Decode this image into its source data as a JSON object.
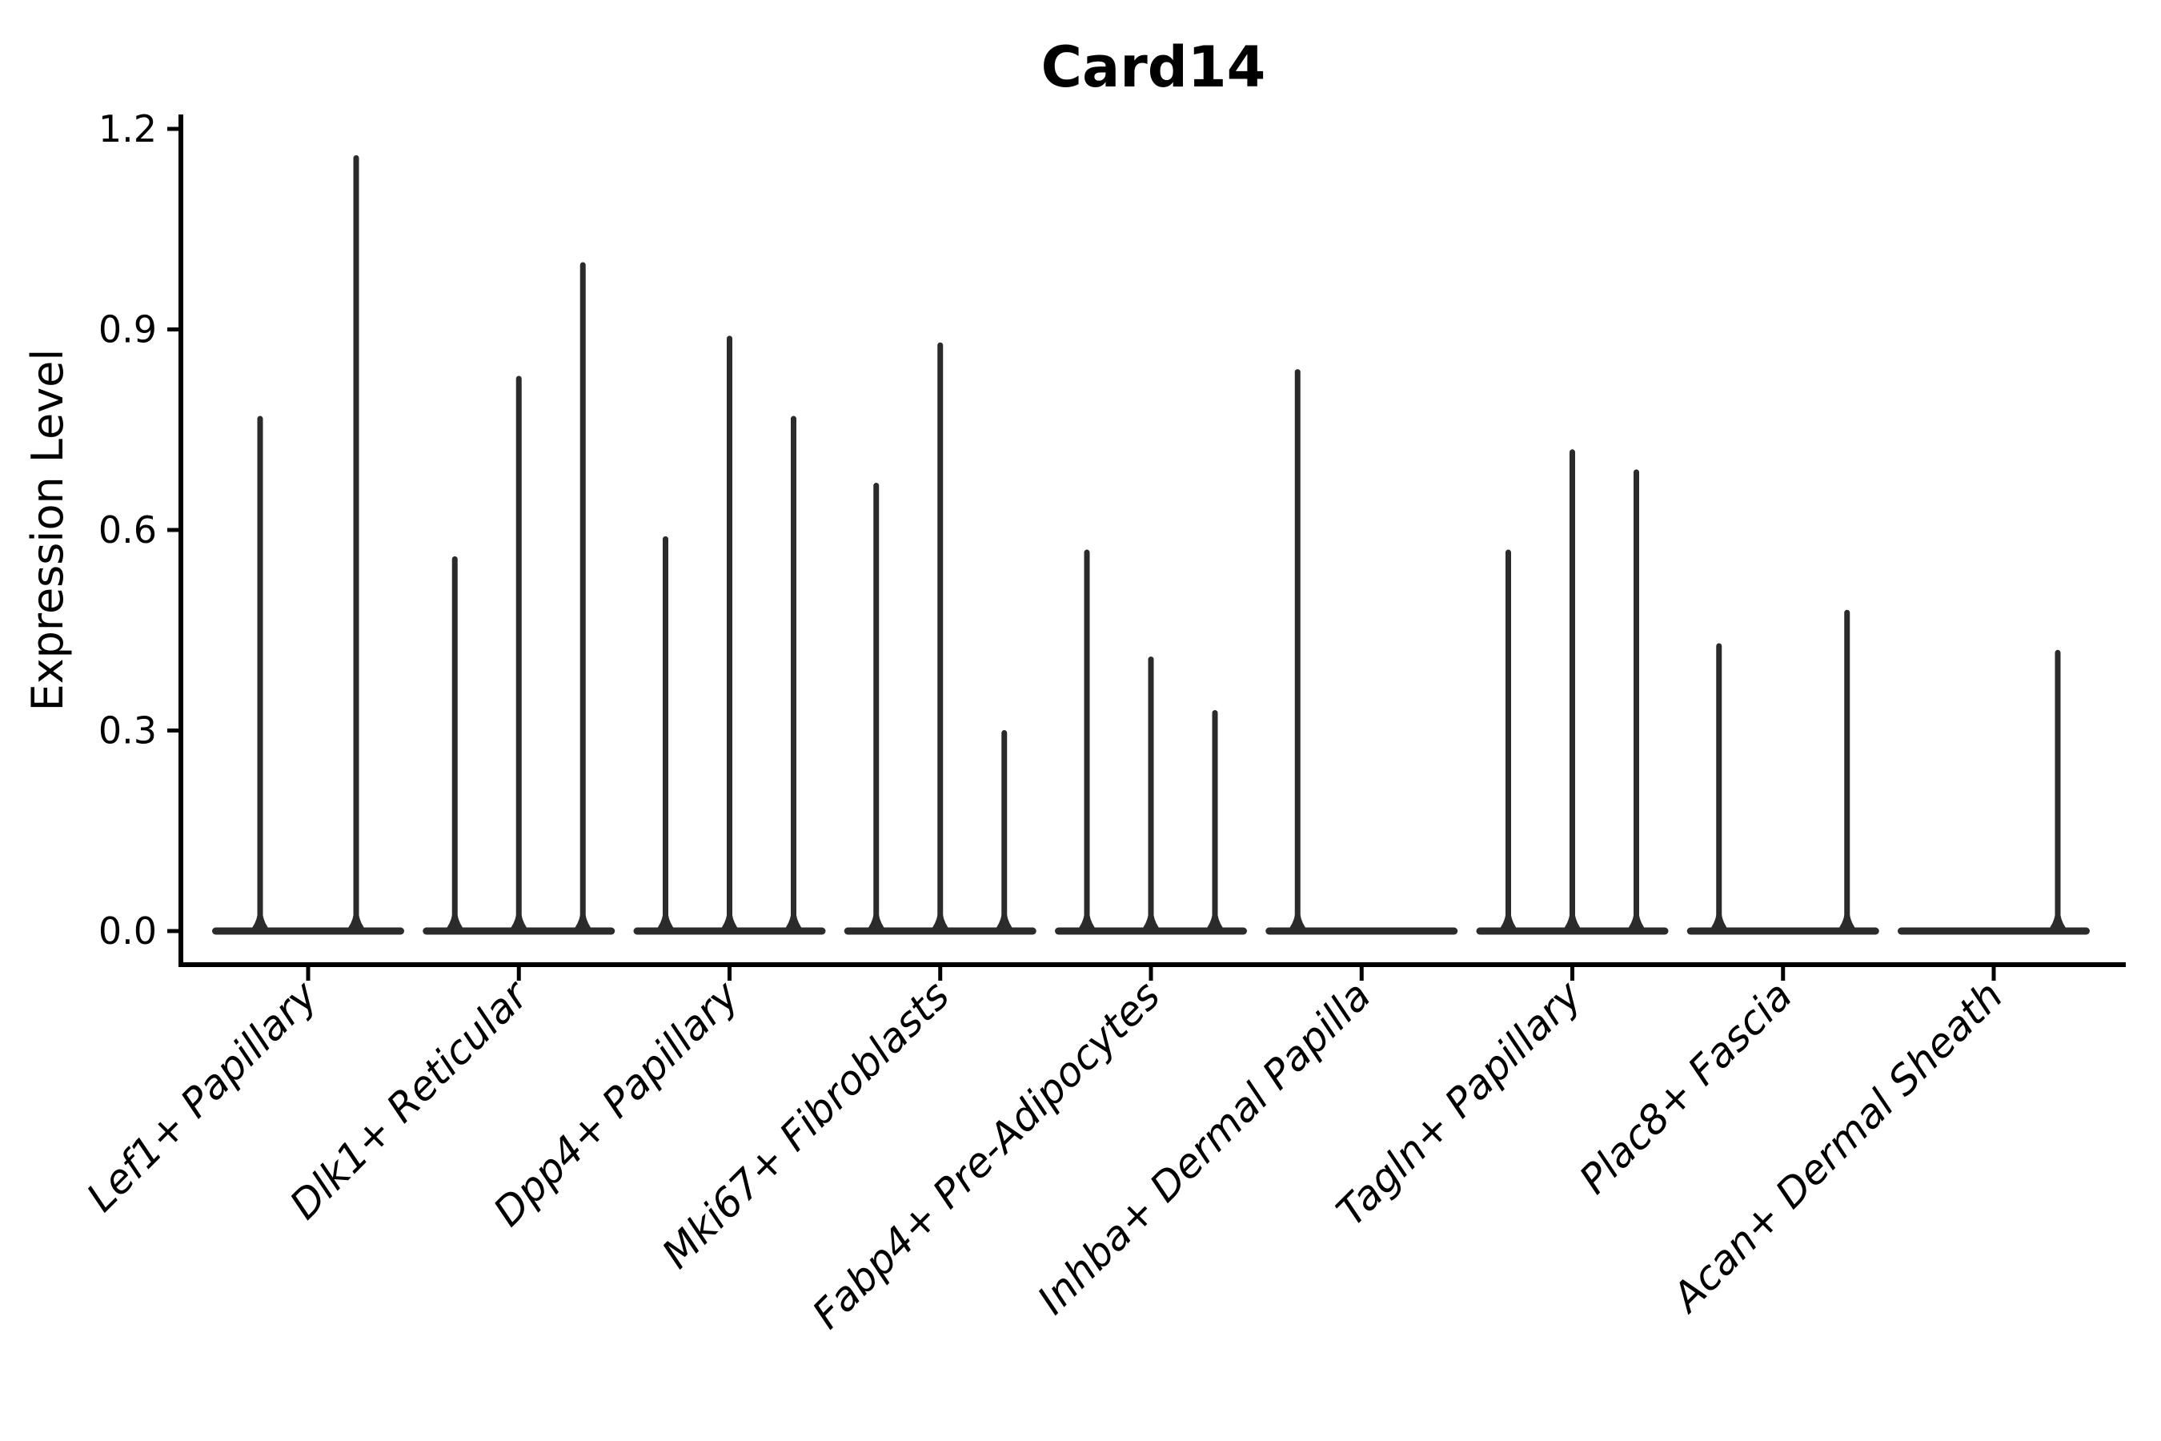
{
  "figure": {
    "background": "#ffffff"
  },
  "chart_data": {
    "type": "violin",
    "title": "Card14",
    "xlabel": "",
    "ylabel": "Expression Level",
    "ylim": [
      0.0,
      1.2
    ],
    "yticks": [
      "0.0",
      "0.3",
      "0.6",
      "0.9",
      "1.2"
    ],
    "ytick_values": [
      0.0,
      0.3,
      0.6,
      0.9,
      1.2
    ],
    "grid": false,
    "legend": "none",
    "x_label_rotation_deg": 45,
    "x_label_style": "italic",
    "categories": [
      "Lef1+ Papillary",
      "Dlk1+ Reticular",
      "Dpp4+ Papillary",
      "Mki67+ Fibroblasts",
      "Fabp4+ Pre-Adipocytes",
      "Inhba+ Dermal Papilla",
      "Tagln+ Papillary",
      "Plac8+ Fascia",
      "Acan+ Dermal Sheath"
    ],
    "groups": [
      {
        "category": "Lef1+ Papillary",
        "violin_maxima": [
          0.77,
          1.16
        ]
      },
      {
        "category": "Dlk1+ Reticular",
        "violin_maxima": [
          0.56,
          0.83,
          1.0
        ]
      },
      {
        "category": "Dpp4+ Papillary",
        "violin_maxima": [
          0.59,
          0.89,
          0.77
        ]
      },
      {
        "category": "Mki67+ Fibroblasts",
        "violin_maxima": [
          0.67,
          0.88,
          0.3
        ]
      },
      {
        "category": "Fabp4+ Pre-Adipocytes",
        "violin_maxima": [
          0.57,
          0.41,
          0.33
        ]
      },
      {
        "category": "Inhba+ Dermal Papilla",
        "violin_maxima": [
          0.84,
          0,
          0
        ]
      },
      {
        "category": "Tagln+ Papillary",
        "violin_maxima": [
          0.57,
          0.72,
          0.69
        ]
      },
      {
        "category": "Plac8+ Fascia",
        "violin_maxima": [
          0.43,
          0,
          0.48
        ]
      },
      {
        "category": "Acan+ Dermal Sheath",
        "violin_maxima": [
          0,
          0,
          0.42
        ]
      }
    ],
    "colors": {
      "violin": "#2b2b2b",
      "axis": "#000000",
      "background": "#ffffff"
    }
  }
}
